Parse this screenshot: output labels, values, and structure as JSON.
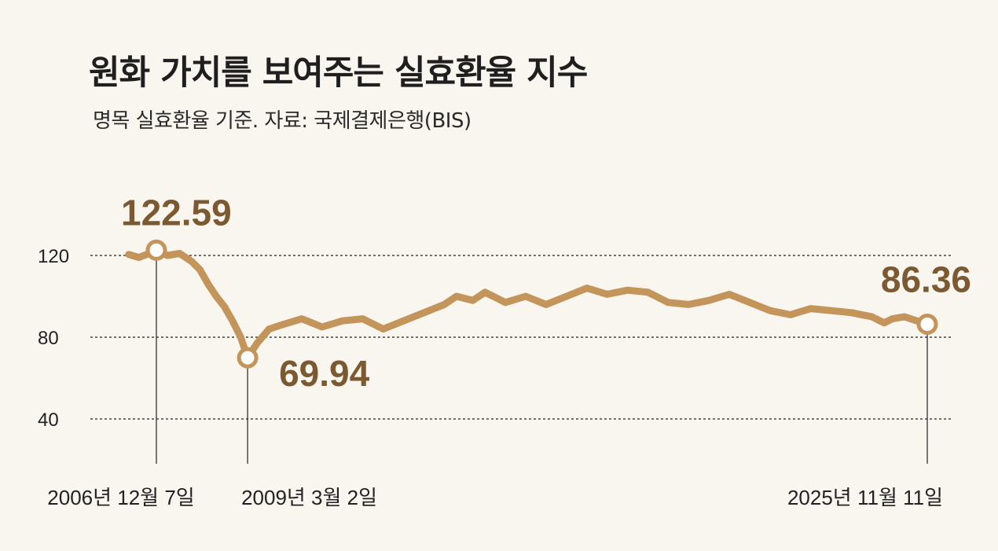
{
  "chart_data": {
    "type": "line",
    "title": "원화 가치를 보여주는 실효환율 지수",
    "subtitle": "명목 실효환율 기준. 자료: 국제결제은행(BIS)",
    "ylim": [
      30,
      128
    ],
    "yticks": [
      120,
      80,
      40
    ],
    "grid": true,
    "line_color": "#c3955b",
    "series": [
      {
        "x": [
          2006.25,
          2006.5,
          2006.75,
          2006.93,
          2007.2,
          2007.5,
          2007.8,
          2008.0,
          2008.2,
          2008.4,
          2008.6,
          2008.8,
          2009.0,
          2009.17,
          2009.4,
          2009.7,
          2010.0,
          2010.5,
          2011.0,
          2011.5,
          2012.0,
          2012.5,
          2013.0,
          2013.5,
          2014.0,
          2014.3,
          2014.7,
          2015.0,
          2015.5,
          2016.0,
          2016.5,
          2017.0,
          2017.5,
          2018.0,
          2018.5,
          2019.0,
          2019.5,
          2020.0,
          2020.5,
          2021.0,
          2021.5,
          2022.0,
          2022.5,
          2023.0,
          2023.5,
          2024.0,
          2024.5,
          2024.8,
          2025.0,
          2025.3,
          2025.6,
          2025.86
        ],
        "y": [
          120.5,
          119,
          121,
          122.59,
          120,
          121,
          117,
          113,
          106,
          100,
          95,
          88,
          80,
          69.94,
          77,
          84,
          86,
          89,
          85,
          88,
          89,
          84,
          88,
          92,
          96,
          100,
          98,
          102,
          97,
          100,
          96,
          100,
          104,
          101,
          103,
          102,
          97,
          96,
          98,
          101,
          97,
          93,
          91,
          94,
          93,
          92,
          90,
          87,
          89,
          90,
          88,
          86.36
        ]
      }
    ],
    "annotations": [
      {
        "date": "2006년 12월 7일",
        "x": 2006.93,
        "y": 122.59,
        "label": "122.59"
      },
      {
        "date": "2009년 3월 2일",
        "x": 2009.17,
        "y": 69.94,
        "label": "69.94"
      },
      {
        "date": "2025년 11월 11일",
        "x": 2025.86,
        "y": 86.36,
        "label": "86.36"
      }
    ]
  }
}
